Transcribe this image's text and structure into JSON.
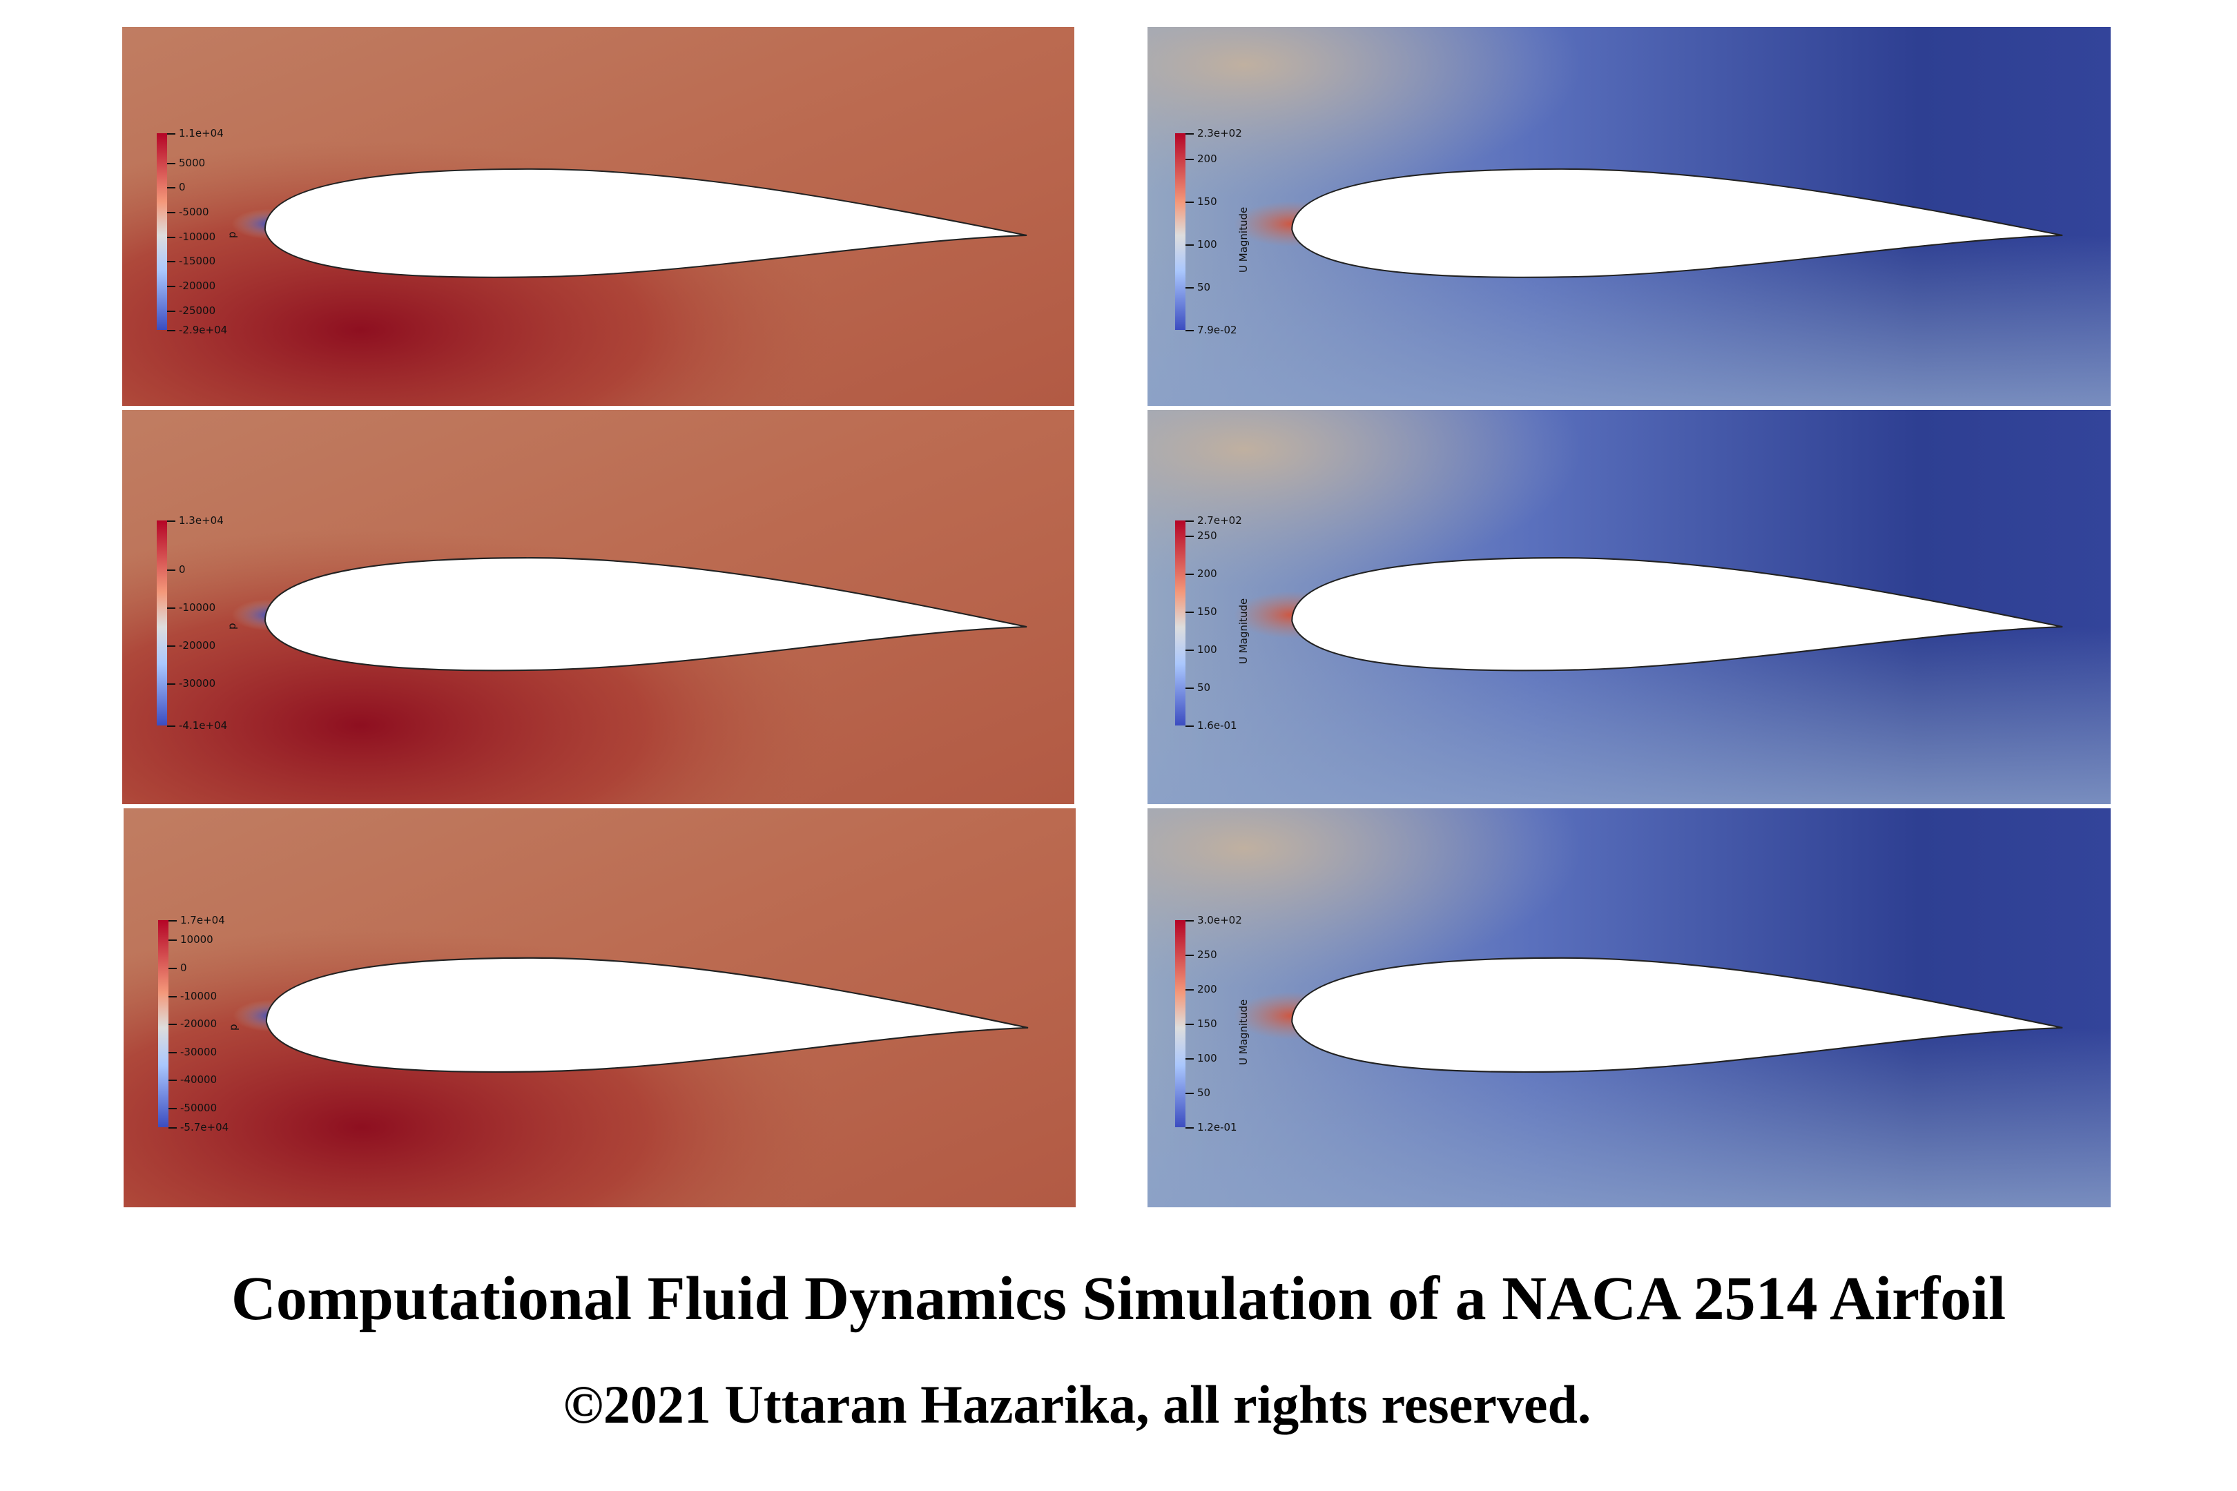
{
  "title": "Computational Fluid Dynamics Simulation of a NACA 2514 Airfoil",
  "copyright": "©2021 Uttaran Hazarika, all rights reserved.",
  "panels": [
    {
      "field": "pressure",
      "colorbar_title": "p",
      "labels": [
        "1.1e+04",
        "5000",
        "0",
        "-5000",
        "-10000",
        "-15000",
        "-20000",
        "-25000",
        "-2.9e+04"
      ]
    },
    {
      "field": "velocity",
      "colorbar_title": "U Magnitude",
      "labels": [
        "2.3e+02",
        "200",
        "150",
        "100",
        "50",
        "7.9e-02"
      ]
    },
    {
      "field": "pressure",
      "colorbar_title": "p",
      "labels": [
        "1.3e+04",
        "0",
        "-10000",
        "-20000",
        "-30000",
        "-4.1e+04"
      ]
    },
    {
      "field": "velocity",
      "colorbar_title": "U Magnitude",
      "labels": [
        "2.7e+02",
        "250",
        "200",
        "150",
        "100",
        "50",
        "1.6e-01"
      ]
    },
    {
      "field": "pressure",
      "colorbar_title": "p",
      "labels": [
        "1.7e+04",
        "10000",
        "0",
        "-10000",
        "-20000",
        "-30000",
        "-40000",
        "-50000",
        "-5.7e+04"
      ]
    },
    {
      "field": "velocity",
      "colorbar_title": "U Magnitude",
      "labels": [
        "3.0e+02",
        "250",
        "200",
        "150",
        "100",
        "50",
        "1.2e-01"
      ]
    }
  ],
  "colors": {
    "cool": "#3b4cc0",
    "neutral": "#dddddd",
    "warm": "#b40426"
  }
}
